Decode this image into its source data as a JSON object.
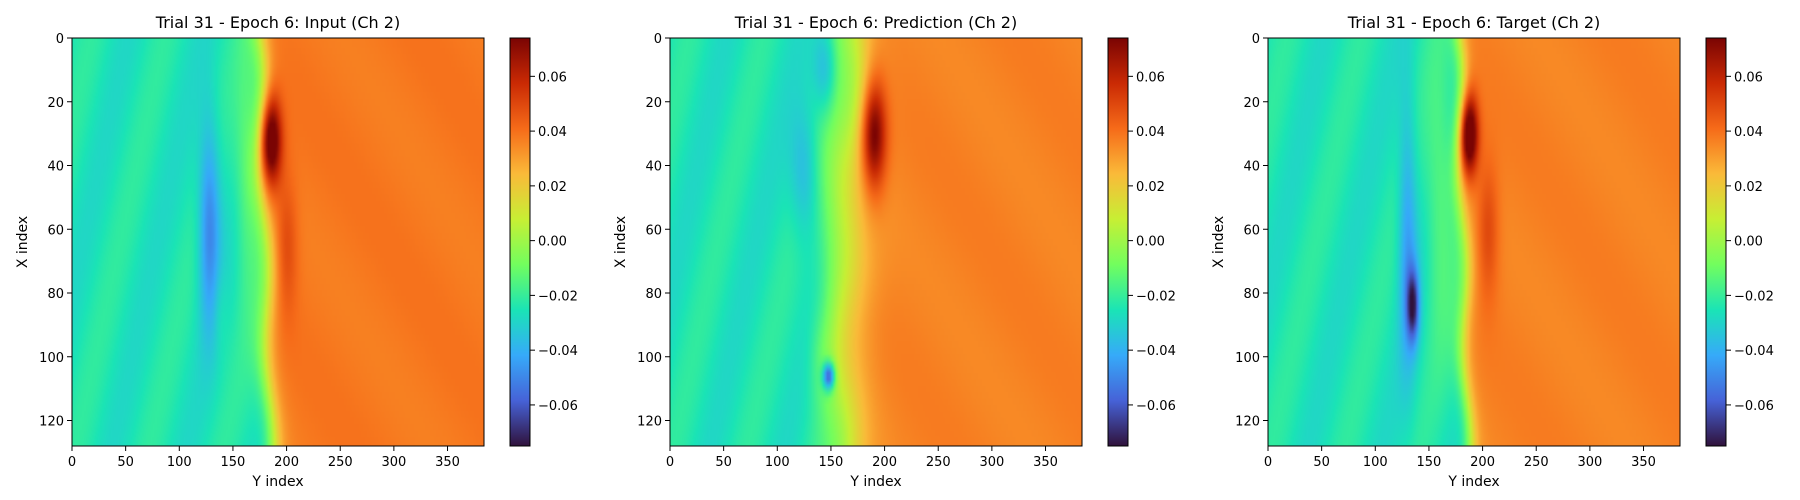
{
  "colormap": {
    "name": "turbo",
    "stops": [
      "#30123b",
      "#4662d7",
      "#36aaf9",
      "#1ae4b6",
      "#72fe5e",
      "#c7ef34",
      "#faba39",
      "#f66b19",
      "#ca2a04",
      "#7a0403"
    ],
    "rendered_stops": [
      "#30123b",
      "#4662d7",
      "#36aaf9",
      "#1ae4b6",
      "#72fe5e",
      "#c7ef34",
      "#faba39",
      "#f66b19",
      "#ca2a04",
      "#7a0403"
    ]
  },
  "chart_data": [
    {
      "type": "heatmap",
      "title": "Trial 31 - Epoch 6: Input (Ch 2)",
      "xlabel": "Y index",
      "ylabel": "X index",
      "xlim": [
        0,
        384
      ],
      "ylim": [
        128,
        0
      ],
      "xticks": [
        0,
        50,
        100,
        150,
        200,
        250,
        300,
        350
      ],
      "yticks": [
        0,
        20,
        40,
        60,
        80,
        100,
        120
      ],
      "colorbar": {
        "vmin": -0.075,
        "vmax": 0.074,
        "ticks": [
          "0.06",
          "0.04",
          "0.02",
          "0.00",
          "−0.02",
          "−0.04",
          "−0.06"
        ],
        "tick_values": [
          0.06,
          0.04,
          0.02,
          0.0,
          -0.02,
          -0.04,
          -0.06
        ]
      },
      "field": {
        "left_value": -0.025,
        "right_value": 0.038,
        "front_y": 180,
        "front_tilt": 5,
        "front_width": 5,
        "features": [
          {
            "y": 128,
            "x": 58,
            "sy": 7,
            "sx": 22,
            "value": -0.052
          },
          {
            "y": 138,
            "x": 85,
            "sy": 5,
            "sx": 10,
            "value": -0.02
          },
          {
            "y": 163,
            "x": 40,
            "sy": 8,
            "sx": 26,
            "value": -0.012
          },
          {
            "y": 185,
            "x": 32,
            "sy": 7,
            "sx": 10,
            "value": 0.03
          },
          {
            "y": 200,
            "x": 65,
            "sy": 7,
            "sx": 15,
            "value": -0.012
          }
        ]
      }
    },
    {
      "type": "heatmap",
      "title": "Trial 31 - Epoch 6: Prediction (Ch 2)",
      "xlabel": "Y index",
      "ylabel": "X index",
      "xlim": [
        0,
        384
      ],
      "ylim": [
        128,
        0
      ],
      "xticks": [
        0,
        50,
        100,
        150,
        200,
        250,
        300,
        350
      ],
      "yticks": [
        0,
        20,
        40,
        60,
        80,
        100,
        120
      ],
      "colorbar": {
        "vmin": -0.075,
        "vmax": 0.074,
        "ticks": [
          "0.06",
          "0.04",
          "0.02",
          "0.00",
          "−0.02",
          "−0.04",
          "−0.06"
        ],
        "tick_values": [
          0.06,
          0.04,
          0.02,
          0.0,
          -0.02,
          -0.04,
          -0.06
        ]
      },
      "field": {
        "left_value": -0.025,
        "right_value": 0.036,
        "front_y": 168,
        "front_tilt": -5,
        "front_width": 10,
        "features": [
          {
            "y": 145,
            "x": 10,
            "sy": 8,
            "sx": 10,
            "value": -0.045
          },
          {
            "y": 125,
            "x": 42,
            "sy": 9,
            "sx": 14,
            "value": -0.04
          },
          {
            "y": 110,
            "x": 75,
            "sy": 8,
            "sx": 14,
            "value": -0.025
          },
          {
            "y": 148,
            "x": 106,
            "sy": 4,
            "sx": 3,
            "value": -0.08
          },
          {
            "y": 140,
            "x": 100,
            "sy": 8,
            "sx": 10,
            "value": -0.02
          },
          {
            "y": 155,
            "x": 55,
            "sy": 12,
            "sx": 40,
            "value": -0.01
          },
          {
            "y": 190,
            "x": 30,
            "sy": 8,
            "sx": 12,
            "value": 0.02
          }
        ]
      }
    },
    {
      "type": "heatmap",
      "title": "Trial 31 - Epoch 6: Target (Ch 2)",
      "xlabel": "Y index",
      "ylabel": "X index",
      "xlim": [
        0,
        384
      ],
      "ylim": [
        128,
        0
      ],
      "xticks": [
        0,
        50,
        100,
        150,
        200,
        250,
        300,
        350
      ],
      "yticks": [
        0,
        20,
        40,
        60,
        80,
        100,
        120
      ],
      "colorbar": {
        "vmin": -0.075,
        "vmax": 0.074,
        "ticks": [
          "0.06",
          "0.04",
          "0.02",
          "0.00",
          "−0.02",
          "−0.04",
          "−0.06"
        ],
        "tick_values": [
          0.06,
          0.04,
          0.02,
          0.0,
          -0.02,
          -0.04,
          -0.06
        ]
      },
      "field": {
        "left_value": -0.025,
        "right_value": 0.036,
        "front_y": 182,
        "front_tilt": 4,
        "front_width": 4,
        "features": [
          {
            "y": 130,
            "x": 62,
            "sy": 6,
            "sx": 30,
            "value": -0.045
          },
          {
            "y": 135,
            "x": 84,
            "sy": 4,
            "sx": 8,
            "value": -0.065
          },
          {
            "y": 160,
            "x": 50,
            "sy": 9,
            "sx": 30,
            "value": -0.012
          },
          {
            "y": 187,
            "x": 30,
            "sy": 6,
            "sx": 9,
            "value": 0.035
          },
          {
            "y": 205,
            "x": 60,
            "sy": 7,
            "sx": 15,
            "value": -0.01
          }
        ]
      }
    }
  ]
}
